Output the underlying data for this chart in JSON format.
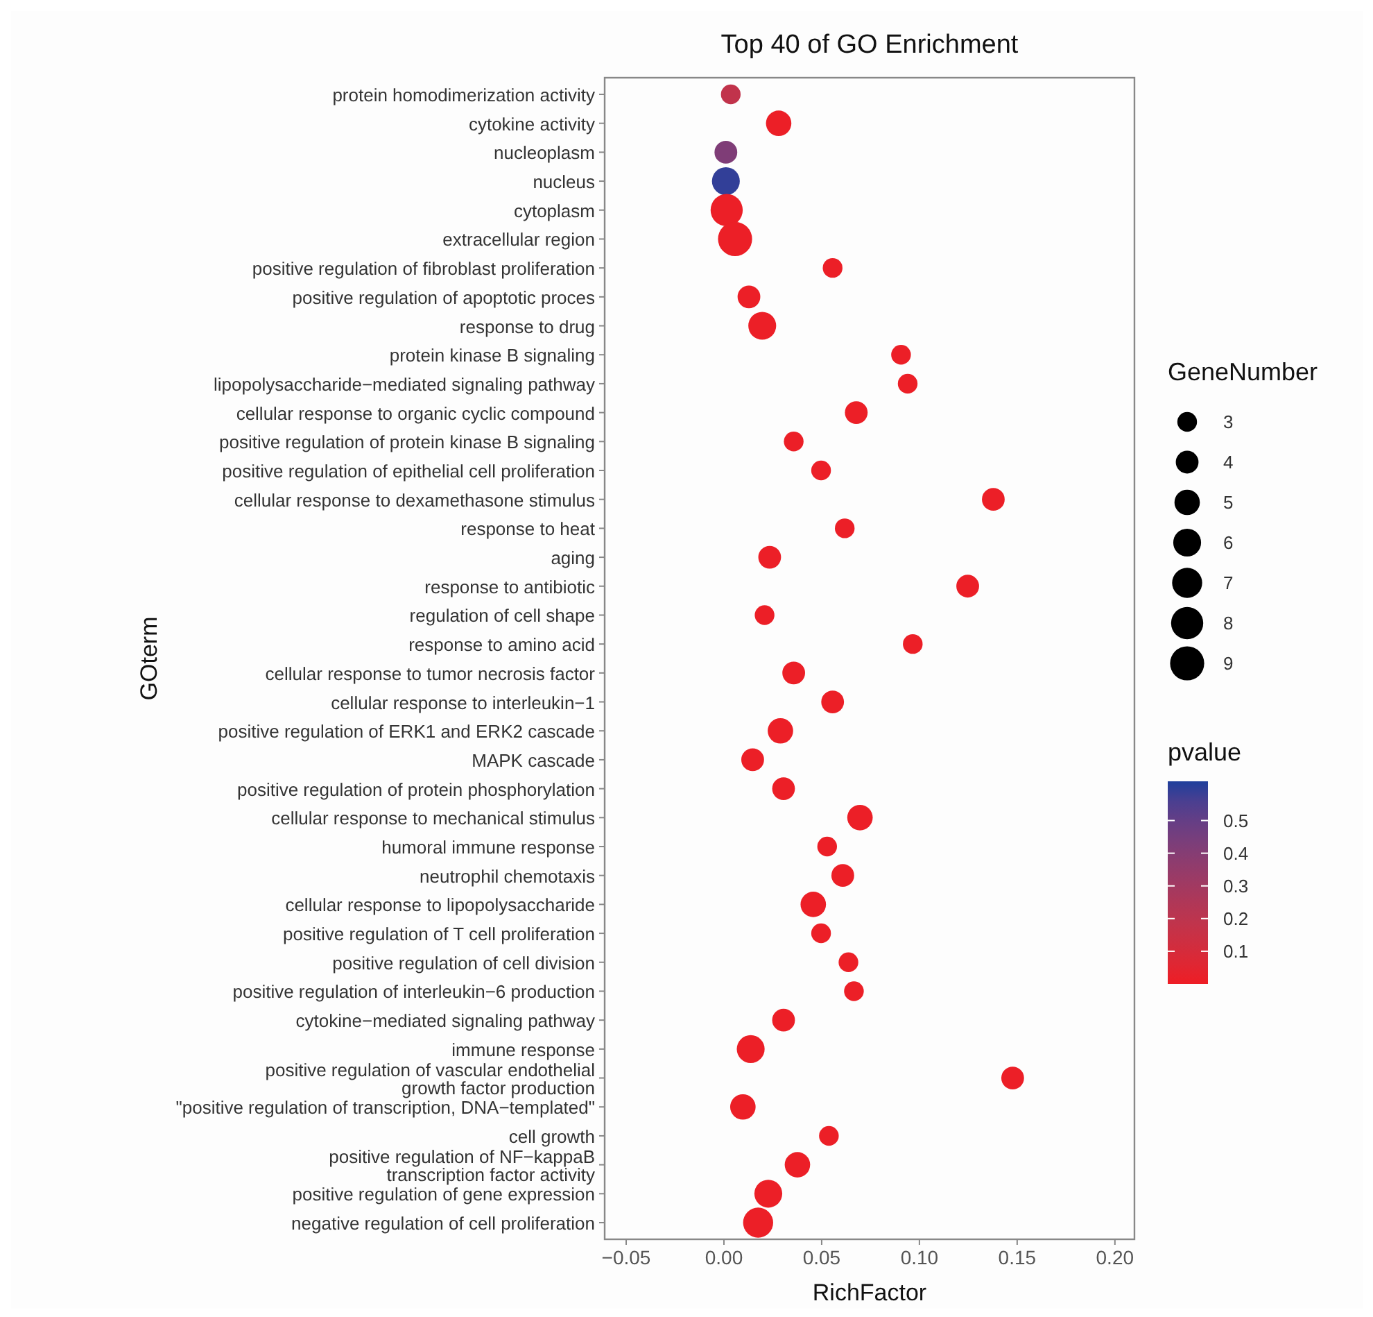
{
  "chart_data": {
    "type": "bubble",
    "title": "Top 40 of GO Enrichment",
    "xlabel": "RichFactor",
    "ylabel": "GOterm",
    "legend_title": "GeneNumber",
    "clabel": "pvalue",
    "orientation": "horizontal",
    "grid": false,
    "marker": "circle",
    "categories": [
      "protein homodimerization activity",
      "cytokine activity",
      "nucleoplasm",
      "nucleus",
      "cytoplasm",
      "extracellular region",
      "positive regulation of fibroblast proliferation",
      "positive regulation of apoptotic proces",
      "response to drug",
      "protein kinase B signaling",
      "lipopolysaccharide−mediated signaling pathway",
      "cellular response to organic cyclic compound",
      "positive regulation of protein kinase B signaling",
      "positive regulation of epithelial cell proliferation",
      "cellular response to dexamethasone stimulus",
      "response to heat",
      "aging",
      "response to antibiotic",
      "regulation of cell shape",
      "response to amino acid",
      "cellular response to tumor necrosis factor",
      "cellular response to interleukin−1",
      "positive regulation of ERK1 and ERK2 cascade",
      "MAPK cascade",
      "positive regulation of protein phosphorylation",
      "cellular response to mechanical stimulus",
      "humoral immune response",
      "neutrophil chemotaxis",
      "cellular response to lipopolysaccharide",
      "positive regulation of T cell proliferation",
      "positive regulation of cell division",
      "positive regulation of interleukin−6 production",
      "cytokine−mediated signaling pathway",
      "immune response",
      "positive regulation of vascular endothelial\ngrowth factor production",
      "\"positive regulation of transcription, DNA−templated\"",
      "cell growth",
      "positive regulation of NF−kappaB\ntranscription factor activity",
      "positive regulation of gene expression",
      "negative regulation of cell proliferation"
    ],
    "values": [
      0.0035,
      0.028,
      0.001,
      0.001,
      0.0014,
      0.0057,
      0.0556,
      0.0128,
      0.0196,
      0.0906,
      0.094,
      0.0677,
      0.0357,
      0.0497,
      0.1378,
      0.0618,
      0.0234,
      0.1247,
      0.0208,
      0.0966,
      0.0357,
      0.0556,
      0.0289,
      0.0147,
      0.0305,
      0.0696,
      0.0528,
      0.0608,
      0.0457,
      0.0497,
      0.0637,
      0.0665,
      0.0305,
      0.0137,
      0.1477,
      0.0097,
      0.0537,
      0.0376,
      0.0227,
      0.0175
    ],
    "sizes": [
      3,
      5,
      4,
      6,
      8,
      9,
      3,
      4,
      6,
      3,
      3,
      4,
      3,
      3,
      4,
      3,
      4,
      4,
      3,
      3,
      4,
      4,
      5,
      4,
      4,
      5,
      3,
      4,
      5,
      3,
      3,
      3,
      4,
      6,
      4,
      5,
      3,
      5,
      6,
      7
    ],
    "cvalues": [
      0.18,
      0.01,
      0.42,
      0.6,
      0.01,
      0.01,
      0.01,
      0.01,
      0.01,
      0.01,
      0.01,
      0.01,
      0.01,
      0.01,
      0.01,
      0.01,
      0.01,
      0.01,
      0.01,
      0.01,
      0.01,
      0.01,
      0.01,
      0.01,
      0.01,
      0.01,
      0.01,
      0.01,
      0.01,
      0.01,
      0.01,
      0.01,
      0.01,
      0.01,
      0.01,
      0.01,
      0.01,
      0.01,
      0.01,
      0.01
    ],
    "size_legend": [
      3,
      4,
      5,
      6,
      7,
      8,
      9
    ],
    "xlim": [
      -0.061,
      0.21
    ],
    "xticks": [
      {
        "value": -0.05,
        "label": "−0.05"
      },
      {
        "value": 0,
        "label": "0.00"
      },
      0.05,
      {
        "value": 0.1,
        "label": "0.10"
      },
      0.15,
      {
        "value": 0.2,
        "label": "0.20"
      }
    ],
    "clim": [
      0,
      0.62
    ],
    "cticks": [
      0.1,
      0.2,
      0.3,
      0.4,
      0.5
    ]
  }
}
